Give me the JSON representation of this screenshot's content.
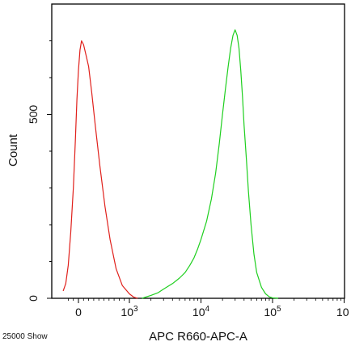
{
  "chart_data": {
    "type": "line",
    "title": "",
    "xlabel": "APC R660-APC-A",
    "ylabel": "Count",
    "footer_note": "25000 Show",
    "x_scale": "biexponential",
    "xlim": [
      -300,
      1000000
    ],
    "ylim": [
      0,
      800
    ],
    "grid": false,
    "x_ticks": [
      {
        "value": 0,
        "label": "0"
      },
      {
        "value": 1000,
        "label": "10",
        "exp": "3"
      },
      {
        "value": 10000,
        "label": "10",
        "exp": "4"
      },
      {
        "value": 100000,
        "label": "10",
        "exp": "5"
      },
      {
        "value": 1000000,
        "label": "10",
        "exp": ""
      }
    ],
    "y_ticks": [
      {
        "value": 0,
        "label": "0"
      },
      {
        "value": 500,
        "label": "500"
      }
    ],
    "series": [
      {
        "color": "#e0201b",
        "points": [
          [
            -300,
            20
          ],
          [
            -250,
            40
          ],
          [
            -200,
            90
          ],
          [
            -150,
            180
          ],
          [
            -100,
            300
          ],
          [
            -60,
            430
          ],
          [
            -30,
            540
          ],
          [
            0,
            620
          ],
          [
            30,
            675
          ],
          [
            60,
            700
          ],
          [
            100,
            690
          ],
          [
            150,
            660
          ],
          [
            200,
            630
          ],
          [
            260,
            560
          ],
          [
            330,
            470
          ],
          [
            420,
            360
          ],
          [
            520,
            250
          ],
          [
            620,
            160
          ],
          [
            740,
            80
          ],
          [
            860,
            35
          ],
          [
            1000,
            12
          ],
          [
            1150,
            3
          ],
          [
            1300,
            0
          ]
        ]
      },
      {
        "color": "#1fcf1f",
        "points": [
          [
            1500,
            0
          ],
          [
            2000,
            8
          ],
          [
            2500,
            15
          ],
          [
            3000,
            25
          ],
          [
            4000,
            40
          ],
          [
            5000,
            55
          ],
          [
            6000,
            70
          ],
          [
            7000,
            90
          ],
          [
            8000,
            110
          ],
          [
            9000,
            135
          ],
          [
            10000,
            160
          ],
          [
            12000,
            210
          ],
          [
            14000,
            270
          ],
          [
            16000,
            340
          ],
          [
            18000,
            420
          ],
          [
            20000,
            500
          ],
          [
            22000,
            570
          ],
          [
            24000,
            630
          ],
          [
            26000,
            680
          ],
          [
            28000,
            715
          ],
          [
            30000,
            730
          ],
          [
            32000,
            715
          ],
          [
            34000,
            680
          ],
          [
            36000,
            620
          ],
          [
            38000,
            550
          ],
          [
            40000,
            470
          ],
          [
            43000,
            380
          ],
          [
            46000,
            290
          ],
          [
            50000,
            200
          ],
          [
            55000,
            120
          ],
          [
            60000,
            70
          ],
          [
            70000,
            30
          ],
          [
            80000,
            12
          ],
          [
            90000,
            4
          ],
          [
            100000,
            1
          ],
          [
            120000,
            0
          ]
        ]
      }
    ]
  }
}
